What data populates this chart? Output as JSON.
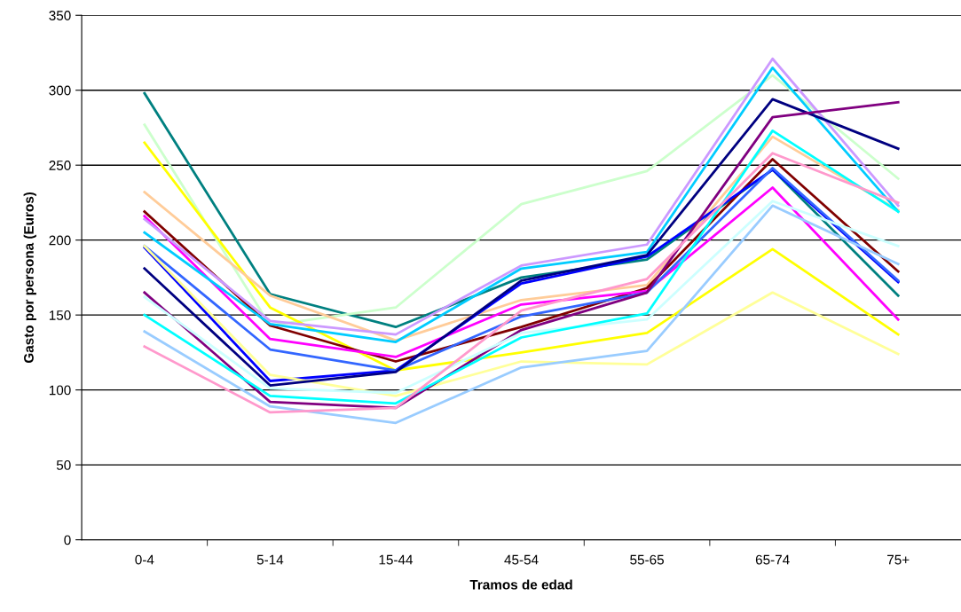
{
  "chart_data": {
    "type": "line",
    "xlabel": "Tramos de edad",
    "ylabel": "Gasto por persona (Euros)",
    "categories": [
      "0-4",
      "5-14",
      "15-44",
      "45-54",
      "55-65",
      "65-74",
      "75+"
    ],
    "ylim": [
      0,
      350
    ],
    "yticks": [
      0,
      50,
      100,
      150,
      200,
      250,
      300,
      350
    ],
    "grid": "y",
    "legend": false,
    "marker": "none",
    "line_style": "solid",
    "series": [
      {
        "color": "#008080",
        "values": [
          298,
          164,
          142,
          175,
          187,
          247,
          163
        ]
      },
      {
        "color": "#ccffcc",
        "values": [
          277,
          143,
          155,
          224,
          246,
          310,
          241
        ]
      },
      {
        "color": "#ffff00",
        "values": [
          265,
          155,
          113,
          125,
          138,
          194,
          137
        ]
      },
      {
        "color": "#ffcc99",
        "values": [
          232,
          163,
          133,
          160,
          170,
          269,
          220
        ]
      },
      {
        "color": "#800000",
        "values": [
          219,
          143,
          119,
          142,
          168,
          254,
          179
        ]
      },
      {
        "color": "#ff00ff",
        "values": [
          216,
          134,
          122,
          157,
          166,
          235,
          147
        ]
      },
      {
        "color": "#cc99ff",
        "values": [
          214,
          146,
          137,
          183,
          197,
          321,
          223
        ]
      },
      {
        "color": "#00ccff",
        "values": [
          205,
          144,
          132,
          181,
          192,
          315,
          219
        ]
      },
      {
        "color": "#0000ff",
        "values": [
          195,
          106,
          113,
          171,
          189,
          247,
          172
        ]
      },
      {
        "color": "#3366ff",
        "values": [
          196,
          127,
          113,
          149,
          165,
          248,
          173
        ]
      },
      {
        "color": "#ffff99",
        "values": [
          196,
          110,
          96,
          119,
          117,
          165,
          124
        ]
      },
      {
        "color": "#000080",
        "values": [
          181,
          103,
          112,
          173,
          190,
          294,
          261
        ]
      },
      {
        "color": "#800080",
        "values": [
          165,
          92,
          88,
          140,
          165,
          282,
          292
        ]
      },
      {
        "color": "#ccffff",
        "values": [
          162,
          101,
          98,
          138,
          147,
          226,
          196
        ]
      },
      {
        "color": "#00ffff",
        "values": [
          150,
          96,
          91,
          135,
          151,
          273,
          219
        ]
      },
      {
        "color": "#99ccff",
        "values": [
          139,
          89,
          78,
          115,
          126,
          223,
          184
        ]
      },
      {
        "color": "#ff99cc",
        "values": [
          129,
          85,
          88,
          153,
          174,
          258,
          225
        ]
      }
    ]
  }
}
